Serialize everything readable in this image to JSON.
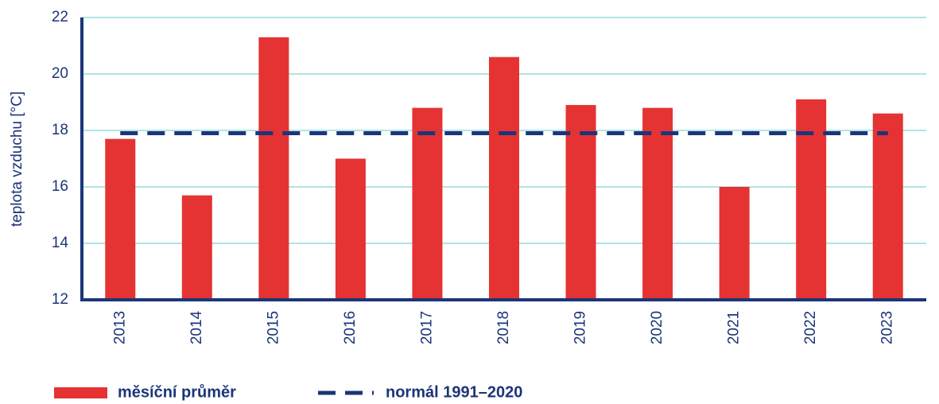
{
  "chart_data": {
    "type": "bar",
    "y_label": "teplota vzduchu [°C]",
    "categories": [
      "2013",
      "2014",
      "2015",
      "2016",
      "2017",
      "2018",
      "2019",
      "2020",
      "2021",
      "2022",
      "2023"
    ],
    "series": [
      {
        "name": "měsíční průměr",
        "type": "bar",
        "color": "#e53333",
        "values": [
          17.7,
          15.7,
          21.3,
          17.0,
          18.8,
          20.6,
          18.9,
          18.8,
          16.0,
          19.1,
          18.6
        ]
      },
      {
        "name": "normál 1991–2020",
        "type": "line",
        "dashed": true,
        "color": "#1c3578",
        "values": [
          17.9,
          17.9,
          17.9,
          17.9,
          17.9,
          17.9,
          17.9,
          17.9,
          17.9,
          17.9,
          17.9
        ]
      }
    ],
    "ylim": [
      12,
      22
    ],
    "yticks": [
      12,
      14,
      16,
      18,
      20,
      22
    ],
    "grid": true
  }
}
